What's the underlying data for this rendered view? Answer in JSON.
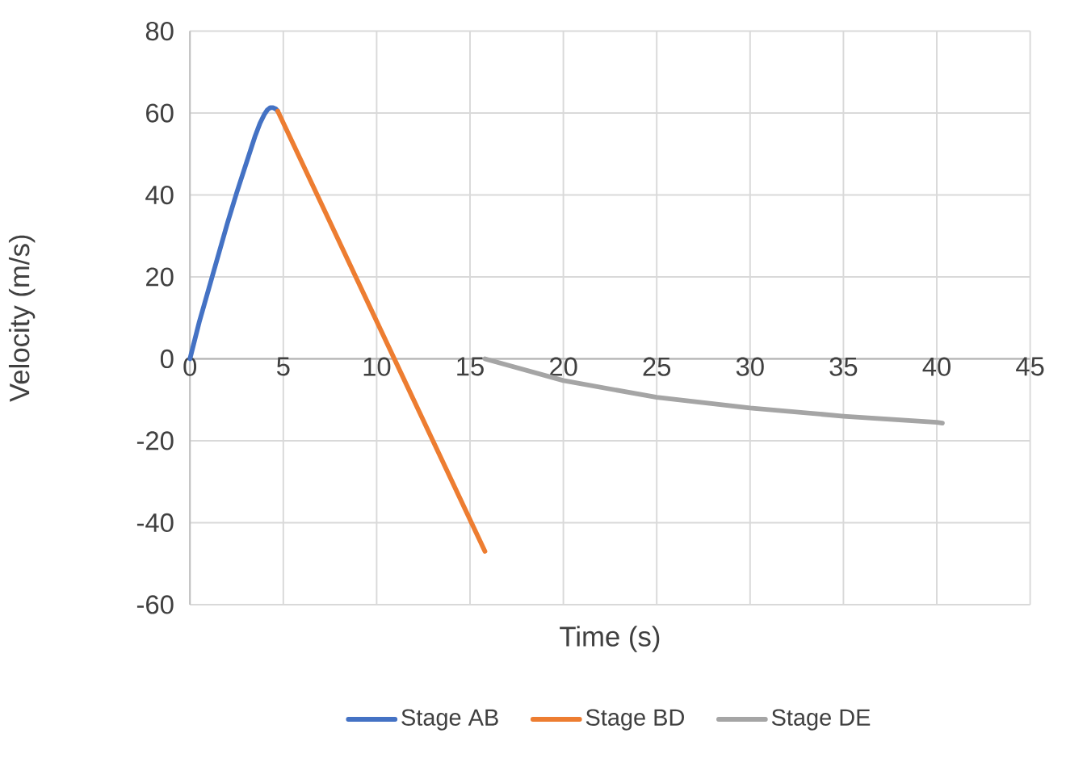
{
  "chart_data": {
    "type": "line",
    "xlabel": "Time (s)",
    "ylabel": "Velocity (m/s)",
    "xlim": [
      0,
      45
    ],
    "xticks": [
      0,
      5,
      10,
      15,
      20,
      25,
      30,
      35,
      40,
      45
    ],
    "ylim": [
      -60,
      80
    ],
    "yticks": [
      -60,
      -40,
      -20,
      0,
      20,
      40,
      60,
      80
    ],
    "grid": true,
    "legend": "bottom",
    "marker": "none",
    "line_style": "solid",
    "series": [
      {
        "name": "Stage AB",
        "color": "#4472c4",
        "x": [
          0,
          0.5,
          1,
          1.5,
          2,
          2.5,
          3,
          3.25,
          3.5,
          3.75,
          4,
          4.15,
          4.3,
          4.45,
          4.6,
          4.7
        ],
        "values": [
          0,
          9,
          17,
          25,
          33,
          40.5,
          47.5,
          51,
          54.5,
          57.5,
          59.8,
          60.8,
          61.3,
          61.3,
          61,
          60.5
        ]
      },
      {
        "name": "Stage BD",
        "color": "#ed7d31",
        "x": [
          4.7,
          15.8
        ],
        "values": [
          60.5,
          -47
        ]
      },
      {
        "name": "Stage DE",
        "color": "#a5a5a5",
        "x": [
          15.8,
          20,
          25,
          30,
          35,
          40,
          40.3
        ],
        "values": [
          0,
          -5.3,
          -9.4,
          -12,
          -14,
          -15.5,
          -15.7
        ]
      }
    ]
  }
}
